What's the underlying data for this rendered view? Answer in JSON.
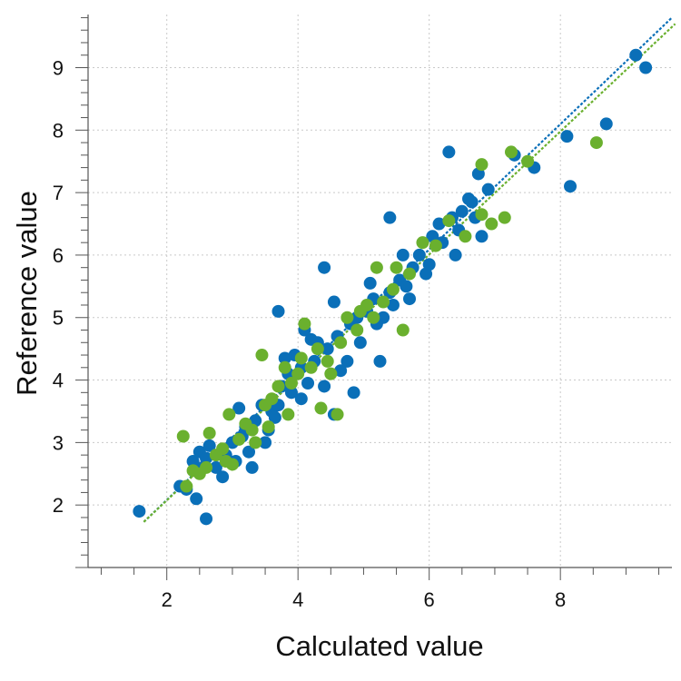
{
  "chart_data": {
    "type": "scatter",
    "title": "",
    "xlabel": "Calculated value",
    "ylabel": "Reference value",
    "xlim": [
      0.8,
      9.7
    ],
    "ylim": [
      1.0,
      9.85
    ],
    "xticks": [
      2,
      4,
      6,
      8
    ],
    "yticks": [
      2,
      3,
      4,
      5,
      6,
      7,
      8,
      9
    ],
    "grid": true,
    "legend": "none",
    "series": [
      {
        "color": "#0a6fb8",
        "fit_line": [
          [
            1.65,
            1.73
          ],
          [
            9.7,
            9.8
          ]
        ],
        "points": [
          [
            1.58,
            1.9
          ],
          [
            2.6,
            1.78
          ],
          [
            2.45,
            2.1
          ],
          [
            2.3,
            2.25
          ],
          [
            2.4,
            2.7
          ],
          [
            2.5,
            2.85
          ],
          [
            2.6,
            2.75
          ],
          [
            2.55,
            2.6
          ],
          [
            2.75,
            2.6
          ],
          [
            2.9,
            2.8
          ],
          [
            3.0,
            3.0
          ],
          [
            3.05,
            2.7
          ],
          [
            3.15,
            3.1
          ],
          [
            3.2,
            3.25
          ],
          [
            3.3,
            2.6
          ],
          [
            3.35,
            3.35
          ],
          [
            3.5,
            3.0
          ],
          [
            3.55,
            3.2
          ],
          [
            3.6,
            3.5
          ],
          [
            3.7,
            3.6
          ],
          [
            3.75,
            3.9
          ],
          [
            3.85,
            4.1
          ],
          [
            3.9,
            3.8
          ],
          [
            3.95,
            4.4
          ],
          [
            4.05,
            4.2
          ],
          [
            4.15,
            3.95
          ],
          [
            4.25,
            4.3
          ],
          [
            4.3,
            4.6
          ],
          [
            4.4,
            3.9
          ],
          [
            4.45,
            4.5
          ],
          [
            4.55,
            3.45
          ],
          [
            4.6,
            4.7
          ],
          [
            4.65,
            4.15
          ],
          [
            4.8,
            4.9
          ],
          [
            4.85,
            3.8
          ],
          [
            4.9,
            5.0
          ],
          [
            4.95,
            4.6
          ],
          [
            5.05,
            5.1
          ],
          [
            5.15,
            5.3
          ],
          [
            5.25,
            4.3
          ],
          [
            5.3,
            5.0
          ],
          [
            5.4,
            5.4
          ],
          [
            5.45,
            5.2
          ],
          [
            5.55,
            5.6
          ],
          [
            5.65,
            5.5
          ],
          [
            5.75,
            5.8
          ],
          [
            5.85,
            6.0
          ],
          [
            5.95,
            5.7
          ],
          [
            6.05,
            6.3
          ],
          [
            6.15,
            6.5
          ],
          [
            6.2,
            6.2
          ],
          [
            6.35,
            6.6
          ],
          [
            6.45,
            6.4
          ],
          [
            6.5,
            6.7
          ],
          [
            6.6,
            6.9
          ],
          [
            6.7,
            6.6
          ],
          [
            6.75,
            7.3
          ],
          [
            6.8,
            6.3
          ],
          [
            6.3,
            7.65
          ],
          [
            5.4,
            6.6
          ],
          [
            4.4,
            5.8
          ],
          [
            3.7,
            5.1
          ],
          [
            7.3,
            7.6
          ],
          [
            7.6,
            7.4
          ],
          [
            8.1,
            7.9
          ],
          [
            8.15,
            7.1
          ],
          [
            8.7,
            8.1
          ],
          [
            9.15,
            9.2
          ],
          [
            9.3,
            9.0
          ],
          [
            2.2,
            2.3
          ],
          [
            2.65,
            2.95
          ],
          [
            3.1,
            3.55
          ],
          [
            3.45,
            3.6
          ],
          [
            3.8,
            4.35
          ],
          [
            4.2,
            4.65
          ],
          [
            4.75,
            4.3
          ],
          [
            5.1,
            5.55
          ],
          [
            5.7,
            5.3
          ],
          [
            6.0,
            5.85
          ],
          [
            6.4,
            6.0
          ],
          [
            4.05,
            3.7
          ],
          [
            3.65,
            3.4
          ],
          [
            3.25,
            2.85
          ],
          [
            2.85,
            2.45
          ],
          [
            4.55,
            5.25
          ],
          [
            5.2,
            4.9
          ],
          [
            5.6,
            6.0
          ],
          [
            6.65,
            6.85
          ],
          [
            6.9,
            7.05
          ],
          [
            4.1,
            4.8
          ]
        ]
      },
      {
        "color": "#6ab02e",
        "fit_line": [
          [
            1.65,
            1.73
          ],
          [
            9.75,
            9.7
          ]
        ],
        "points": [
          [
            2.25,
            3.1
          ],
          [
            2.3,
            2.3
          ],
          [
            2.5,
            2.5
          ],
          [
            2.6,
            2.6
          ],
          [
            2.65,
            3.15
          ],
          [
            2.75,
            2.8
          ],
          [
            2.85,
            2.9
          ],
          [
            2.95,
            3.45
          ],
          [
            3.0,
            2.65
          ],
          [
            3.1,
            3.05
          ],
          [
            3.2,
            3.3
          ],
          [
            3.3,
            3.2
          ],
          [
            3.45,
            4.4
          ],
          [
            3.5,
            3.6
          ],
          [
            3.6,
            3.7
          ],
          [
            3.7,
            3.9
          ],
          [
            3.8,
            4.2
          ],
          [
            3.85,
            3.45
          ],
          [
            3.9,
            3.95
          ],
          [
            4.0,
            4.1
          ],
          [
            4.1,
            4.9
          ],
          [
            4.2,
            4.2
          ],
          [
            4.3,
            4.5
          ],
          [
            4.35,
            3.55
          ],
          [
            4.45,
            4.3
          ],
          [
            4.6,
            3.45
          ],
          [
            4.65,
            4.6
          ],
          [
            4.75,
            5.0
          ],
          [
            4.9,
            4.8
          ],
          [
            5.05,
            5.2
          ],
          [
            5.2,
            5.8
          ],
          [
            5.3,
            5.25
          ],
          [
            5.45,
            5.45
          ],
          [
            5.6,
            4.8
          ],
          [
            5.7,
            5.7
          ],
          [
            5.9,
            6.2
          ],
          [
            6.1,
            6.15
          ],
          [
            6.3,
            6.55
          ],
          [
            6.55,
            6.3
          ],
          [
            6.8,
            6.65
          ],
          [
            6.8,
            7.45
          ],
          [
            6.95,
            6.5
          ],
          [
            7.15,
            6.6
          ],
          [
            7.25,
            7.65
          ],
          [
            7.5,
            7.5
          ],
          [
            8.55,
            7.8
          ],
          [
            4.95,
            5.1
          ],
          [
            5.5,
            5.8
          ],
          [
            3.35,
            3.0
          ],
          [
            2.9,
            2.7
          ],
          [
            3.55,
            3.25
          ],
          [
            4.05,
            4.35
          ],
          [
            4.5,
            4.1
          ],
          [
            5.15,
            5.0
          ],
          [
            2.4,
            2.55
          ]
        ]
      }
    ]
  }
}
